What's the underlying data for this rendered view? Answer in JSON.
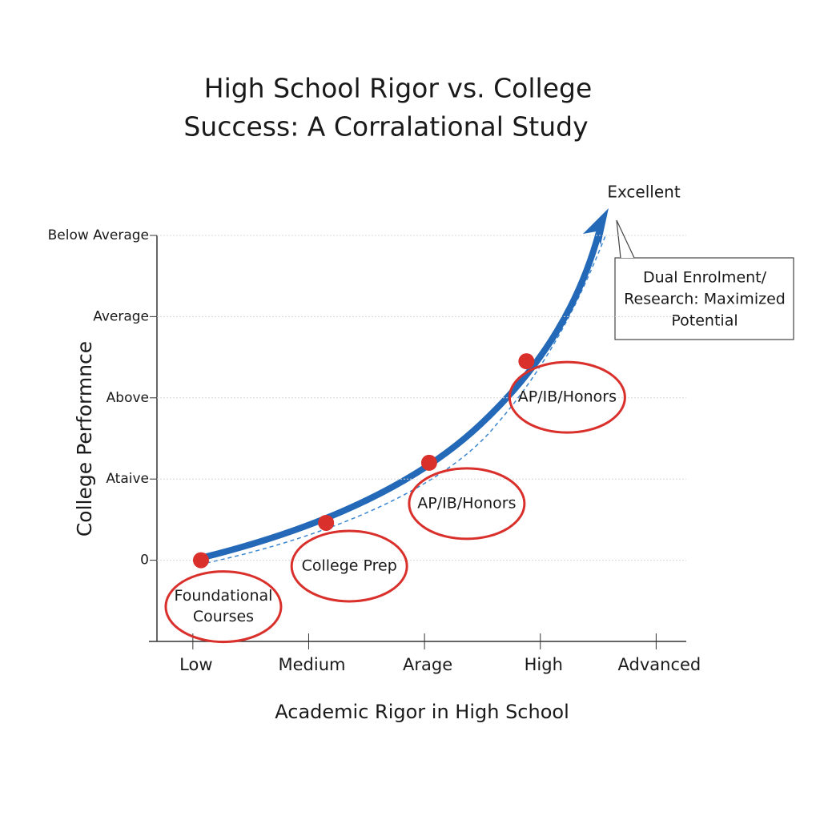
{
  "chart_data": {
    "type": "scatter",
    "title": [
      "High School Rigor vs. College",
      "Success: A Corralational Study"
    ],
    "x_label": "Academic Rigor in High School",
    "y_label": "College Performnce",
    "xlim": [
      -0.31,
      4.26
    ],
    "xticks": [
      {
        "value": 0,
        "label": "Low"
      },
      {
        "value": 1,
        "label": "Medium"
      },
      {
        "value": 2,
        "label": "Arage"
      },
      {
        "value": 3,
        "label": "High"
      },
      {
        "value": 4,
        "label": "Advanced"
      }
    ],
    "ylim": [
      -1,
      4
    ],
    "yticks": [
      0,
      {
        "value": 1,
        "label": "Ataive"
      },
      {
        "value": 2,
        "label": "Above"
      },
      {
        "value": 3,
        "label": "Average"
      },
      {
        "value": 4,
        "label": "Below Average"
      }
    ],
    "grid": true,
    "color": "#d9302c",
    "x": [
      0.07,
      1.15,
      2.04,
      2.88
    ],
    "values": [
      0,
      0.46,
      1.2,
      2.45
    ],
    "point_labels": [
      [
        "Foundational",
        "Courses"
      ],
      [
        "College Prep"
      ],
      [
        "AP/IB/Honors"
      ],
      [
        "AP/IB/Honors"
      ]
    ],
    "annotations": {
      "peak": "Excellent",
      "callout": [
        "Dual Enrolment/",
        "Research: Maximized",
        "Potential"
      ]
    }
  }
}
